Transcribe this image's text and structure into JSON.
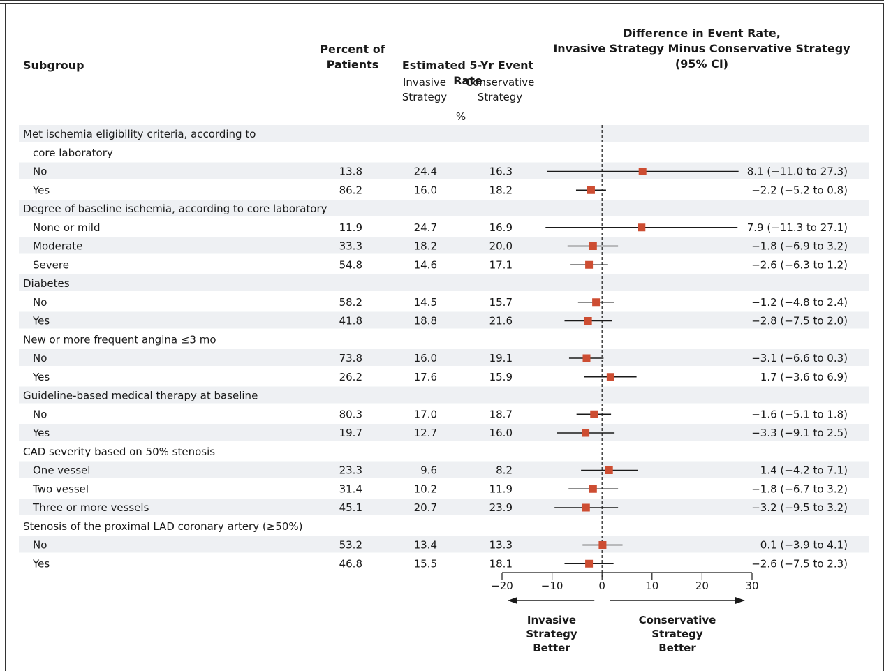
{
  "headers": {
    "subgroup": "Subgroup",
    "percent_line1": "Percent of",
    "percent_line2": "Patients",
    "rate": "Estimated 5-Yr Event Rate",
    "invasive_line1": "Invasive",
    "invasive_line2": "Strategy",
    "conservative_line1": "Conservative",
    "conservative_line2": "Strategy",
    "unit": "%",
    "diff_line1": "Difference in Event Rate,",
    "diff_line2": "Invasive Strategy Minus Conservative Strategy",
    "diff_line3": "(95% CI)"
  },
  "colors": {
    "marker": "#cd4d32",
    "band": "#eef0f3",
    "line": "#1a1a1a"
  },
  "footer": {
    "left_label": [
      "Invasive",
      "Strategy",
      "Better"
    ],
    "right_label": [
      "Conservative",
      "Strategy",
      "Better"
    ]
  },
  "chart_data": {
    "type": "forest",
    "xlim": [
      -20,
      30
    ],
    "xticks": [
      -20,
      -10,
      0,
      10,
      20,
      30
    ],
    "reference_line": 0,
    "rows": [
      {
        "type": "group",
        "label": "Met ischemia eligibility criteria, according to"
      },
      {
        "type": "group",
        "label": "core laboratory",
        "indent": true
      },
      {
        "type": "item",
        "label": "No",
        "pct": "13.8",
        "inv": "24.4",
        "cons": "16.3",
        "est": 8.1,
        "lo": -11.0,
        "hi": 27.3,
        "ci": "8.1 (−11.0 to 27.3)"
      },
      {
        "type": "item",
        "label": "Yes",
        "pct": "86.2",
        "inv": "16.0",
        "cons": "18.2",
        "est": -2.2,
        "lo": -5.2,
        "hi": 0.8,
        "ci": "−2.2 (−5.2 to 0.8)"
      },
      {
        "type": "group",
        "label": "Degree of baseline ischemia, according to core laboratory"
      },
      {
        "type": "item",
        "label": "None or mild",
        "pct": "11.9",
        "inv": "24.7",
        "cons": "16.9",
        "est": 7.9,
        "lo": -11.3,
        "hi": 27.1,
        "ci": "7.9 (−11.3 to 27.1)"
      },
      {
        "type": "item",
        "label": "Moderate",
        "pct": "33.3",
        "inv": "18.2",
        "cons": "20.0",
        "est": -1.8,
        "lo": -6.9,
        "hi": 3.2,
        "ci": "−1.8 (−6.9 to 3.2)"
      },
      {
        "type": "item",
        "label": "Severe",
        "pct": "54.8",
        "inv": "14.6",
        "cons": "17.1",
        "est": -2.6,
        "lo": -6.3,
        "hi": 1.2,
        "ci": "−2.6 (−6.3 to 1.2)"
      },
      {
        "type": "group",
        "label": "Diabetes"
      },
      {
        "type": "item",
        "label": "No",
        "pct": "58.2",
        "inv": "14.5",
        "cons": "15.7",
        "est": -1.2,
        "lo": -4.8,
        "hi": 2.4,
        "ci": "−1.2 (−4.8 to 2.4)"
      },
      {
        "type": "item",
        "label": "Yes",
        "pct": "41.8",
        "inv": "18.8",
        "cons": "21.6",
        "est": -2.8,
        "lo": -7.5,
        "hi": 2.0,
        "ci": "−2.8 (−7.5 to 2.0)"
      },
      {
        "type": "group",
        "label": "New or more frequent angina ≤3 mo"
      },
      {
        "type": "item",
        "label": "No",
        "pct": "73.8",
        "inv": "16.0",
        "cons": "19.1",
        "est": -3.1,
        "lo": -6.6,
        "hi": 0.3,
        "ci": "−3.1 (−6.6 to 0.3)"
      },
      {
        "type": "item",
        "label": "Yes",
        "pct": "26.2",
        "inv": "17.6",
        "cons": "15.9",
        "est": 1.7,
        "lo": -3.6,
        "hi": 6.9,
        "ci": "1.7 (−3.6 to 6.9)"
      },
      {
        "type": "group",
        "label": "Guideline-based medical therapy at baseline"
      },
      {
        "type": "item",
        "label": "No",
        "pct": "80.3",
        "inv": "17.0",
        "cons": "18.7",
        "est": -1.6,
        "lo": -5.1,
        "hi": 1.8,
        "ci": "−1.6 (−5.1 to 1.8)"
      },
      {
        "type": "item",
        "label": "Yes",
        "pct": "19.7",
        "inv": "12.7",
        "cons": "16.0",
        "est": -3.3,
        "lo": -9.1,
        "hi": 2.5,
        "ci": "−3.3 (−9.1 to 2.5)"
      },
      {
        "type": "group",
        "label": "CAD severity based on 50% stenosis"
      },
      {
        "type": "item",
        "label": "One vessel",
        "pct": "23.3",
        "inv": "9.6",
        "cons": "8.2",
        "est": 1.4,
        "lo": -4.2,
        "hi": 7.1,
        "ci": "1.4 (−4.2 to 7.1)"
      },
      {
        "type": "item",
        "label": "Two vessel",
        "pct": "31.4",
        "inv": "10.2",
        "cons": "11.9",
        "est": -1.8,
        "lo": -6.7,
        "hi": 3.2,
        "ci": "−1.8 (−6.7 to 3.2)"
      },
      {
        "type": "item",
        "label": "Three or more vessels",
        "pct": "45.1",
        "inv": "20.7",
        "cons": "23.9",
        "est": -3.2,
        "lo": -9.5,
        "hi": 3.2,
        "ci": "−3.2 (−9.5 to 3.2)"
      },
      {
        "type": "group",
        "label": "Stenosis of the proximal LAD coronary artery (≥50%)"
      },
      {
        "type": "item",
        "label": "No",
        "pct": "53.2",
        "inv": "13.4",
        "cons": "13.3",
        "est": 0.1,
        "lo": -3.9,
        "hi": 4.1,
        "ci": "0.1 (−3.9 to 4.1)"
      },
      {
        "type": "item",
        "label": "Yes",
        "pct": "46.8",
        "inv": "15.5",
        "cons": "18.1",
        "est": -2.6,
        "lo": -7.5,
        "hi": 2.3,
        "ci": "−2.6 (−7.5 to 2.3)"
      }
    ]
  }
}
